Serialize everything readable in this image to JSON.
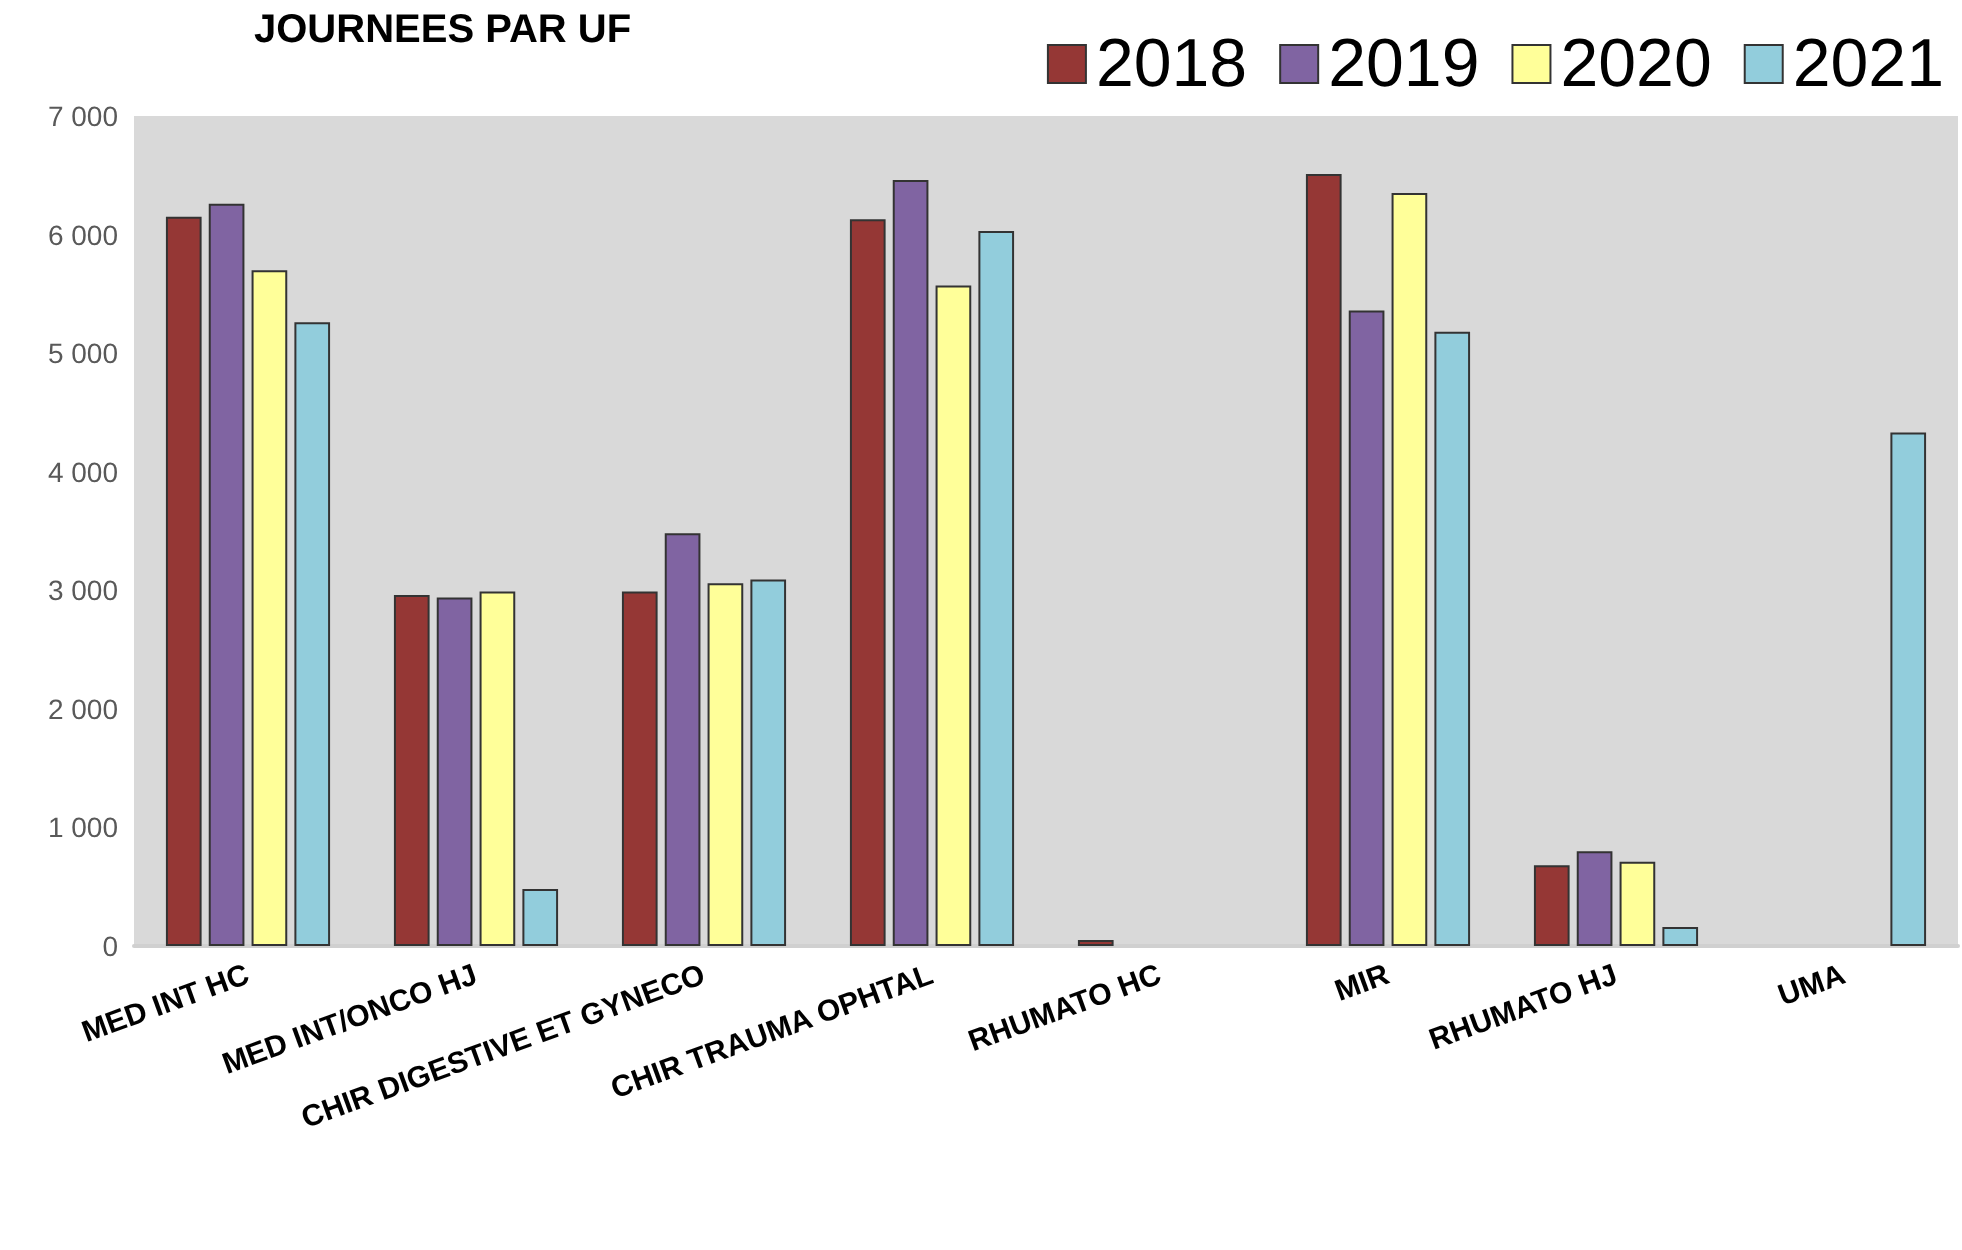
{
  "chart_data": {
    "type": "bar",
    "title": "JOURNEES PAR UF",
    "categories": [
      "MED INT HC",
      "MED INT/ONCO HJ",
      "CHIR DIGESTIVE ET GYNECO",
      "CHIR TRAUMA OPHTAL",
      "RHUMATO HC",
      "MIR",
      "RHUMATO HJ",
      "UMA"
    ],
    "series": [
      {
        "name": "2018",
        "color": "#953735",
        "values": [
          6150,
          2960,
          2990,
          6130,
          50,
          6510,
          680,
          null
        ]
      },
      {
        "name": "2019",
        "color": "#8064a2",
        "values": [
          6260,
          2940,
          3480,
          6460,
          null,
          5360,
          800,
          null
        ]
      },
      {
        "name": "2020",
        "color": "#ffff99",
        "values": [
          5700,
          2990,
          3060,
          5570,
          null,
          6350,
          710,
          null
        ]
      },
      {
        "name": "2021",
        "color": "#92cddc",
        "values": [
          5260,
          480,
          3090,
          6030,
          null,
          5180,
          160,
          4330
        ]
      }
    ],
    "ylim": [
      0,
      7000
    ],
    "yticks": [
      0,
      {
        "value": 1000,
        "label": "1 000"
      },
      {
        "value": 2000,
        "label": "2 000"
      },
      {
        "value": 3000,
        "label": "3 000"
      },
      {
        "value": 4000,
        "label": "4 000"
      },
      {
        "value": 5000,
        "label": "5 000"
      },
      {
        "value": 6000,
        "label": "6 000"
      },
      {
        "value": 7000,
        "label": "7 000"
      }
    ],
    "grid": false,
    "legend": "top right"
  }
}
